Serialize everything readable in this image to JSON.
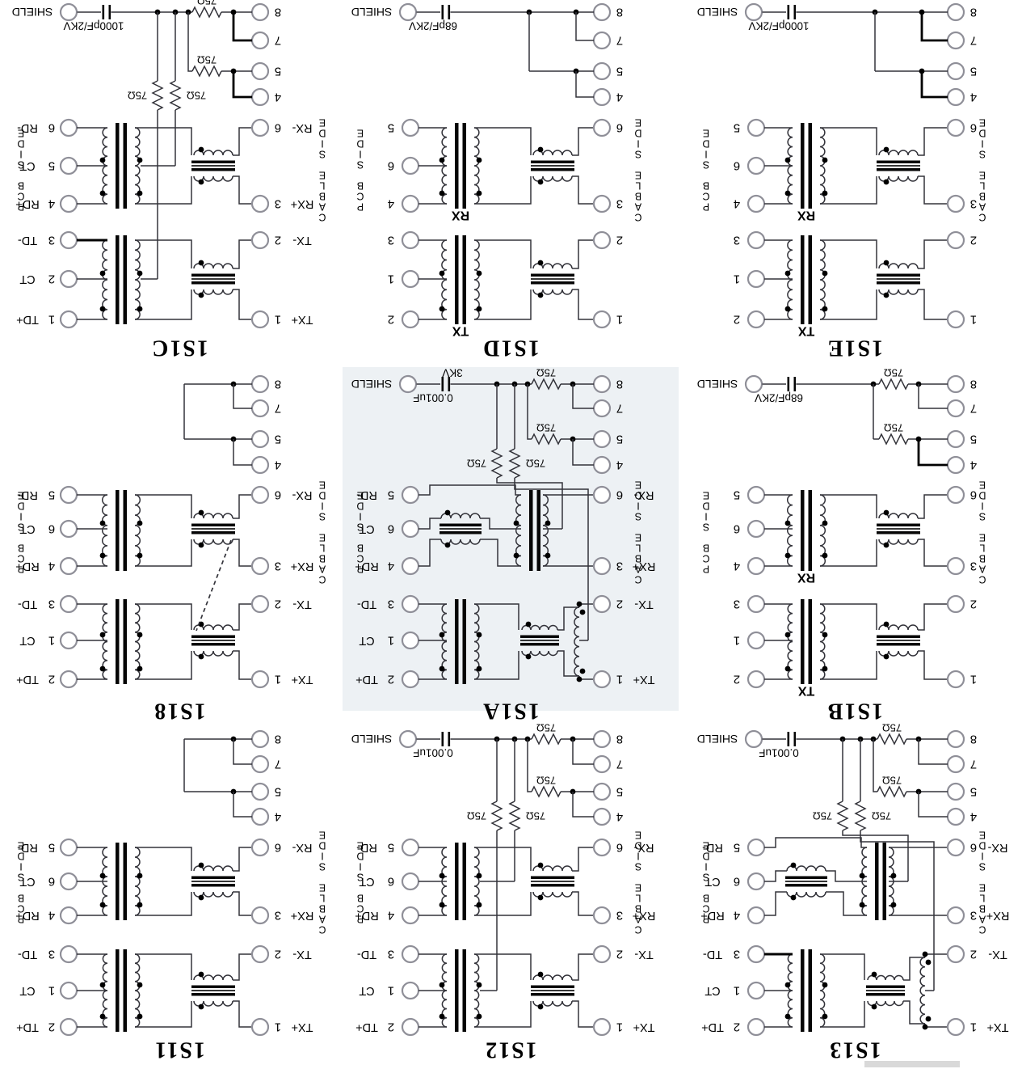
{
  "sheet": {
    "background": "#ffffff",
    "note": "scanned schematic page rotated 180 degrees"
  },
  "labels": {
    "pcb_side": "PCB SIDE",
    "cable_side": "CABLE SIDE",
    "shield": "SHIELD",
    "resistor": "75Ω"
  },
  "panels": [
    {
      "title": "1S1C",
      "top_network": "cap3res",
      "cap_label": "1000pF/2KV",
      "cap_label_top": null,
      "left_style": "named",
      "left_pins": [
        [
          "RD-",
          "6"
        ],
        [
          "CT",
          "5"
        ],
        [
          "RD+",
          "4"
        ],
        [
          "TD-",
          "3"
        ],
        [
          "CT",
          "2"
        ],
        [
          "TD+",
          "1"
        ]
      ],
      "top_pins": [
        "8",
        "7",
        "5",
        "4"
      ],
      "right_pins": [
        [
          "6",
          "RX-"
        ],
        [
          "3",
          "RX+"
        ],
        [
          "2",
          "TX-"
        ],
        [
          "1",
          "TX+"
        ]
      ],
      "rx_text": null,
      "tx_text": null,
      "rx_variant": "std",
      "tx_variant": "std",
      "dashed_link": false,
      "background": null,
      "bold_drops": true,
      "bold_td": true
    },
    {
      "title": "1S1D",
      "top_network": "capOnly",
      "cap_label": "68pF/2KV",
      "cap_label_top": null,
      "left_style": "plain",
      "left_pins": [
        [
          "",
          "5"
        ],
        [
          "",
          "6"
        ],
        [
          "",
          "4"
        ],
        [
          "",
          "3"
        ],
        [
          "",
          "1"
        ],
        [
          "",
          "2"
        ]
      ],
      "top_pins": [
        "8",
        "7",
        "5",
        "4"
      ],
      "right_pins": [
        [
          "6",
          ""
        ],
        [
          "3",
          ""
        ],
        [
          "2",
          ""
        ],
        [
          "1",
          ""
        ]
      ],
      "rx_text": "RX",
      "tx_text": "TX",
      "rx_variant": "std",
      "tx_variant": "std",
      "dashed_link": false,
      "background": null,
      "bold_drops": false,
      "bold_td": false
    },
    {
      "title": "1S1E",
      "top_network": "capOnly",
      "cap_label": "1000pF/2KV",
      "cap_label_top": null,
      "left_style": "plain",
      "left_pins": [
        [
          "",
          "5"
        ],
        [
          "",
          "6"
        ],
        [
          "",
          "4"
        ],
        [
          "",
          "3"
        ],
        [
          "",
          "1"
        ],
        [
          "",
          "2"
        ]
      ],
      "top_pins": [
        "8",
        "7",
        "5",
        "4"
      ],
      "right_pins": [
        [
          "6",
          ""
        ],
        [
          "3",
          ""
        ],
        [
          "2",
          ""
        ],
        [
          "1",
          ""
        ]
      ],
      "rx_text": "RX",
      "tx_text": "TX",
      "rx_variant": "std",
      "tx_variant": "std",
      "dashed_link": false,
      "background": null,
      "bold_drops": true,
      "bold_td": false
    },
    {
      "title": "1S18",
      "top_network": "tie",
      "cap_label": null,
      "cap_label_top": null,
      "left_style": "named",
      "left_pins": [
        [
          "RD-",
          "5"
        ],
        [
          "CT",
          "6"
        ],
        [
          "RD+",
          "4"
        ],
        [
          "TD-",
          "3"
        ],
        [
          "CT",
          "1"
        ],
        [
          "TD+",
          "2"
        ]
      ],
      "top_pins": [
        "8",
        "7",
        "5",
        "4"
      ],
      "right_pins": [
        [
          "6",
          "RX-"
        ],
        [
          "3",
          "RX+"
        ],
        [
          "2",
          "TX-"
        ],
        [
          "1",
          "TX+"
        ]
      ],
      "rx_text": null,
      "tx_text": null,
      "rx_variant": "std",
      "tx_variant": "std",
      "dashed_link": true,
      "background": null,
      "bold_drops": false,
      "bold_td": false
    },
    {
      "title": "1S1A",
      "top_network": "cap3res",
      "cap_label": "0.001uF",
      "cap_label_top": "3KV",
      "left_style": "named",
      "left_pins": [
        [
          "RD-",
          "5"
        ],
        [
          "CT",
          "6"
        ],
        [
          "RD+",
          "4"
        ],
        [
          "TD-",
          "3"
        ],
        [
          "CT",
          "1"
        ],
        [
          "TD+",
          "2"
        ]
      ],
      "top_pins": [
        "8",
        "7",
        "5",
        "4"
      ],
      "right_pins": [
        [
          "6",
          "RX-"
        ],
        [
          "3",
          "RX+"
        ],
        [
          "2",
          "TX-"
        ],
        [
          "1",
          "TX+"
        ]
      ],
      "rx_text": null,
      "tx_text": null,
      "rx_variant": "choke_first",
      "tx_variant": "out_winding",
      "dashed_link": false,
      "background": "#edf1f4",
      "bold_drops": false,
      "bold_td": false
    },
    {
      "title": "1S1B",
      "top_network": "cap1res",
      "cap_label": "68pF/2KV",
      "cap_label_top": null,
      "left_style": "plain",
      "left_pins": [
        [
          "",
          "5"
        ],
        [
          "",
          "6"
        ],
        [
          "",
          "4"
        ],
        [
          "",
          "3"
        ],
        [
          "",
          "1"
        ],
        [
          "",
          "2"
        ]
      ],
      "top_pins": [
        "8",
        "7",
        "5",
        "4"
      ],
      "right_pins": [
        [
          "6",
          ""
        ],
        [
          "3",
          ""
        ],
        [
          "2",
          ""
        ],
        [
          "1",
          ""
        ]
      ],
      "rx_text": "RX",
      "tx_text": "TX",
      "rx_variant": "std",
      "tx_variant": "std",
      "dashed_link": false,
      "background": null,
      "bold_drops": true,
      "bold_td": false
    },
    {
      "title": "1S11",
      "top_network": "tie",
      "cap_label": null,
      "cap_label_top": null,
      "left_style": "named",
      "left_pins": [
        [
          "RD-",
          "5"
        ],
        [
          "CT",
          "6"
        ],
        [
          "RD+",
          "4"
        ],
        [
          "TD-",
          "3"
        ],
        [
          "CT",
          "1"
        ],
        [
          "TD+",
          "2"
        ]
      ],
      "top_pins": [
        "8",
        "7",
        "5",
        "4"
      ],
      "right_pins": [
        [
          "6",
          "RX-"
        ],
        [
          "3",
          "RX+"
        ],
        [
          "2",
          "TX-"
        ],
        [
          "1",
          "TX+"
        ]
      ],
      "rx_text": null,
      "tx_text": null,
      "rx_variant": "std",
      "tx_variant": "std",
      "dashed_link": false,
      "background": null,
      "bold_drops": false,
      "bold_td": false
    },
    {
      "title": "1S12",
      "top_network": "cap3res",
      "cap_label": "0.001uF",
      "cap_label_top": null,
      "left_style": "named",
      "left_pins": [
        [
          "RD-",
          "5"
        ],
        [
          "CT",
          "6"
        ],
        [
          "RD+",
          "4"
        ],
        [
          "TD-",
          "3"
        ],
        [
          "CT",
          "1"
        ],
        [
          "TD+",
          "2"
        ]
      ],
      "top_pins": [
        "8",
        "7",
        "5",
        "4"
      ],
      "right_pins": [
        [
          "6",
          "RX-"
        ],
        [
          "3",
          "RX+"
        ],
        [
          "2",
          "TX-"
        ],
        [
          "1",
          "TX+"
        ]
      ],
      "rx_text": null,
      "tx_text": null,
      "rx_variant": "std",
      "tx_variant": "std",
      "dashed_link": false,
      "background": null,
      "bold_drops": false,
      "bold_td": false
    },
    {
      "title": "1S13",
      "top_network": "cap3res",
      "cap_label": "0.001uF",
      "cap_label_top": null,
      "left_style": "named",
      "left_pins": [
        [
          "RD-",
          "5"
        ],
        [
          "CT",
          "6"
        ],
        [
          "RD+",
          "4"
        ],
        [
          "TD-",
          "3"
        ],
        [
          "CT",
          "1"
        ],
        [
          "TD+",
          "2"
        ]
      ],
      "top_pins": [
        "8",
        "7",
        "5",
        "4"
      ],
      "right_pins": [
        [
          "6",
          "RX-"
        ],
        [
          "3",
          "RX+"
        ],
        [
          "2",
          "TX-"
        ],
        [
          "1",
          "TX+"
        ]
      ],
      "rx_text": null,
      "tx_text": null,
      "rx_variant": "choke_first",
      "tx_variant": "out_winding",
      "dashed_link": false,
      "background": null,
      "bold_drops": false,
      "bold_td": true
    }
  ]
}
